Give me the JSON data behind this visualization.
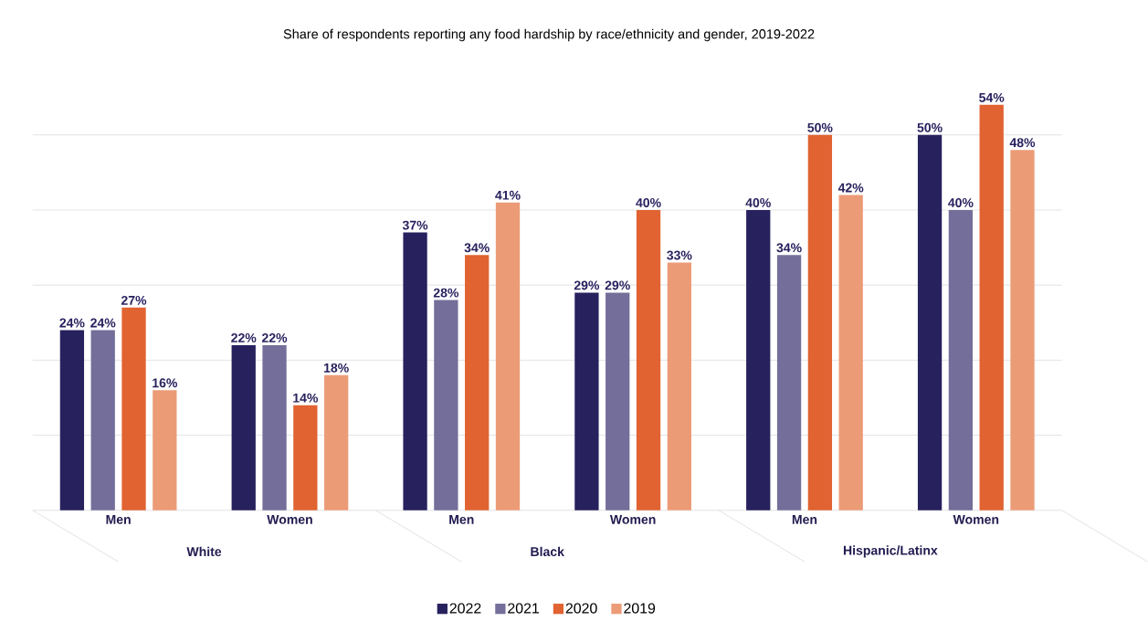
{
  "chart_data": {
    "type": "bar",
    "title": "Share of respondents reporting any food hardship by race/ethnicity and gender, 2019-2022",
    "categories": [
      "Men",
      "Women",
      "Men",
      "Women",
      "Men",
      "Women"
    ],
    "annotations": [
      "White",
      "Black",
      "Hispanic/Latinx"
    ],
    "series": [
      {
        "name": "2022",
        "color": "#27215e",
        "values": [
          24,
          22,
          37,
          29,
          40,
          50
        ],
        "value_labels": [
          "24%",
          "22%",
          "37%",
          "29%",
          "40%",
          "50%"
        ]
      },
      {
        "name": "2021",
        "color": "#736f9a",
        "values": [
          24,
          22,
          28,
          29,
          34,
          40
        ],
        "value_labels": [
          "24%",
          "22%",
          "28%",
          "29%",
          "34%",
          "40%"
        ]
      },
      {
        "name": "2020",
        "color": "#e06331",
        "values": [
          27,
          14,
          34,
          40,
          50,
          54
        ],
        "value_labels": [
          "27%",
          "14%",
          "34%",
          "40%",
          "50%",
          "54%"
        ]
      },
      {
        "name": "2019",
        "color": "#ec9b77",
        "values": [
          16,
          18,
          41,
          33,
          42,
          48
        ],
        "value_labels": [
          "16%",
          "18%",
          "41%",
          "33%",
          "42%",
          "48%"
        ]
      }
    ],
    "yticks": [
      {
        "value": 0,
        "label": null
      },
      {
        "value": 10,
        "label": null
      },
      {
        "value": 20,
        "label": null
      },
      {
        "value": 30,
        "label": null
      },
      {
        "value": 40,
        "label": null
      },
      {
        "value": 50,
        "label": null
      }
    ],
    "grid": "y",
    "tick_labels": "x",
    "legend": "bottom"
  }
}
